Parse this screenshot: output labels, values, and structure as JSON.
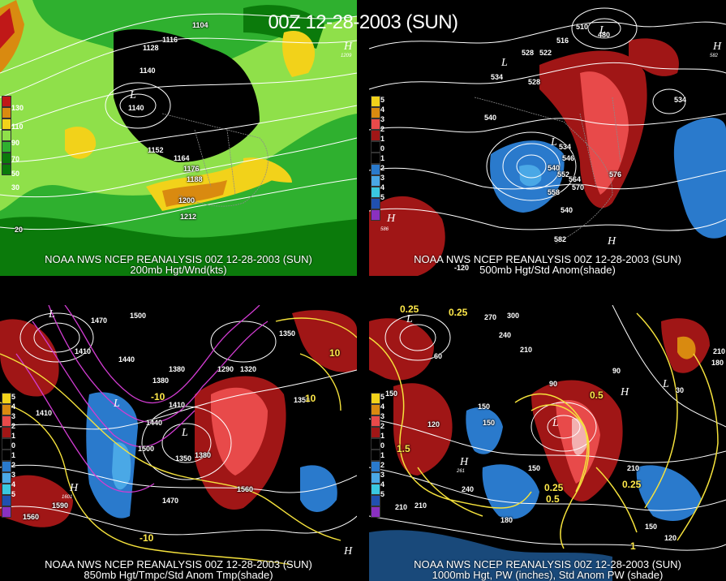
{
  "title": "00Z 12-28-2003 (SUN)",
  "panels": {
    "p1": {
      "line1": "NOAA NWS NCEP REANALYSIS 00Z 12-28-2003 (SUN)",
      "line2": "200mb Hgt/Wnd(kts)",
      "legend": [
        "130",
        "110",
        "90",
        "70",
        "50",
        "30"
      ],
      "labels": [
        "1104",
        "1116",
        "1128",
        "1140",
        "1140",
        "1152",
        "1164",
        "1176",
        "1188",
        "1200",
        "1212",
        "20"
      ],
      "highs": [
        {
          "t": "H",
          "sub": "1209"
        }
      ],
      "lows": [
        {
          "t": "L"
        }
      ]
    },
    "p2": {
      "line1": "NOAA NWS NCEP REANALYSIS 00Z 12-28-2003 (SUN)",
      "line2": "500mb Hgt/Std Anom(shade)",
      "legend": [
        "5",
        "4",
        "3",
        "2",
        "1",
        "0",
        "1",
        "2",
        "3",
        "4",
        "5"
      ],
      "labels": [
        "510",
        "516",
        "528",
        "522",
        "534",
        "540",
        "528",
        "534",
        "540",
        "546",
        "552",
        "558",
        "564",
        "570",
        "576",
        "582",
        "540",
        "534",
        "480",
        "-120"
      ],
      "highs": [
        {
          "t": "H",
          "sub": "586"
        },
        {
          "t": "H",
          "sub": "582"
        },
        {
          "t": "H",
          "sub": ""
        }
      ],
      "lows": [
        {
          "t": "L"
        },
        {
          "t": "L"
        },
        {
          "t": "L"
        }
      ]
    },
    "p3": {
      "line1": "NOAA NWS NCEP REANALYSIS 00Z 12-28-2003 (SUN)",
      "line2": "850mb Hgt/Tmpc/Std Anom Tmp(shade)",
      "legend": [
        "5",
        "4",
        "3",
        "2",
        "1",
        "0",
        "1",
        "2",
        "3",
        "4",
        "5"
      ],
      "labels": [
        "1500",
        "1470",
        "1440",
        "1410",
        "1410",
        "1380",
        "1290",
        "1320",
        "1350",
        "1350",
        "1410",
        "1440",
        "1350",
        "1380",
        "1500",
        "1470",
        "1560",
        "1590",
        "1560",
        "1380",
        "-10",
        "10",
        "-10",
        "10"
      ],
      "highs": [
        {
          "t": "H",
          "sub": "1601"
        },
        {
          "t": "H",
          "sub": ""
        }
      ],
      "lows": [
        {
          "t": "L"
        },
        {
          "t": "L"
        },
        {
          "t": "L"
        }
      ]
    },
    "p4": {
      "line1": "NOAA NWS NCEP REANALYSIS 00Z 12-28-2003 (SUN)",
      "line2": "1000mb Hgt, PW (inches), Std Anom PW (shade)",
      "legend": [
        "5",
        "4",
        "3",
        "2",
        "1",
        "0",
        "1",
        "2",
        "3",
        "4",
        "5"
      ],
      "labels": [
        "0.25",
        "0.25",
        "270",
        "300",
        "240",
        "210",
        "210",
        "150",
        "150",
        "120",
        "210",
        "180",
        "150",
        "90",
        "60",
        "30",
        "180",
        "210",
        "240",
        "150",
        "120",
        "150",
        "210",
        "90",
        "1.5",
        "1",
        "0.5",
        "0.25",
        "0.25",
        "0.5"
      ],
      "highs": [
        {
          "t": "H",
          "sub": "261"
        },
        {
          "t": "H",
          "sub": ""
        }
      ],
      "lows": [
        {
          "t": "L"
        },
        {
          "t": "L"
        },
        {
          "t": "L"
        }
      ]
    }
  },
  "colors": {
    "green_dark": "#0b7a0b",
    "green": "#2fb02f",
    "green_light": "#8fe04a",
    "yellow": "#f2d21a",
    "orange": "#d98a10",
    "red_wind": "#c01818",
    "anom_red": "#a01616",
    "anom_red_light": "#e84a4a",
    "anom_blue": "#2a7acc",
    "anom_blue_light": "#4aa8e6",
    "contour_white": "#ffffff",
    "contour_yellow": "#f5e23c",
    "contour_magenta": "#d23cd2",
    "map_grey": "#8a8a8a"
  }
}
